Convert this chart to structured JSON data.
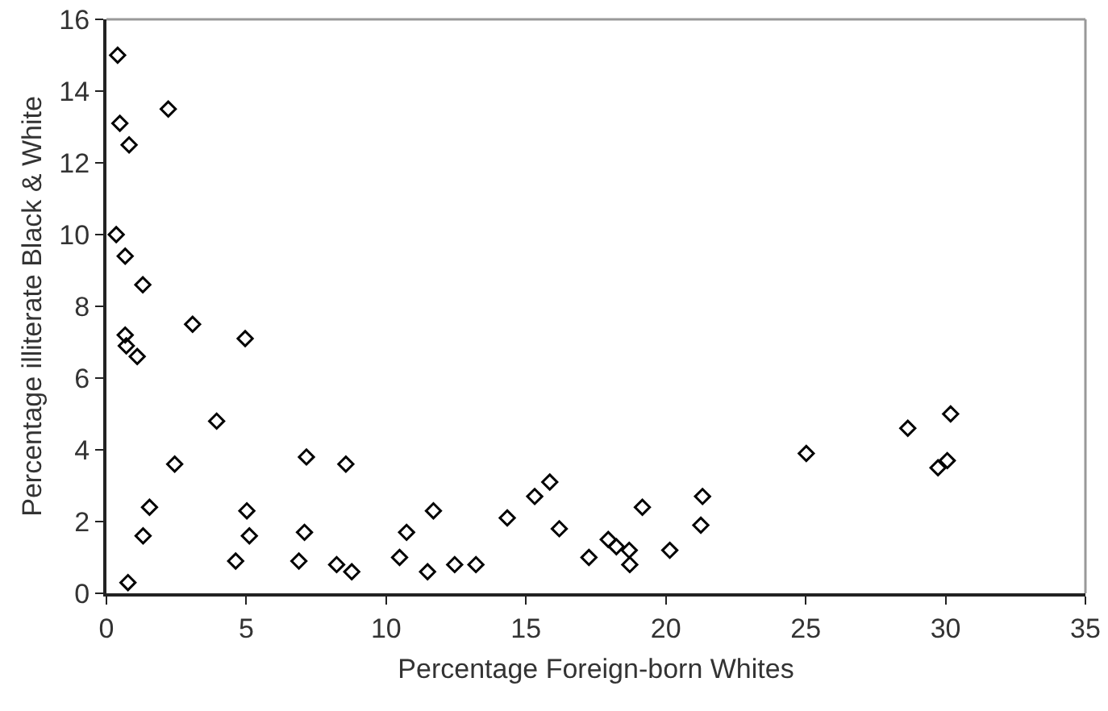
{
  "chart_data": {
    "type": "scatter",
    "xlabel": "Percentage Foreign-born Whites",
    "ylabel": "Percentage illiterate Black & White",
    "x": [
      0.4,
      0.48,
      0.81,
      2.21,
      0.35,
      0.67,
      1.3,
      0.67,
      0.71,
      1.1,
      3.08,
      4.96,
      3.94,
      2.44,
      1.54,
      1.31,
      0.77,
      4.62,
      5.02,
      5.11,
      7.15,
      8.56,
      7.08,
      6.88,
      8.23,
      8.77,
      10.48,
      10.73,
      11.48,
      11.69,
      12.45,
      13.21,
      14.33,
      15.31,
      15.85,
      16.19,
      17.25,
      17.94,
      18.23,
      18.69,
      18.71,
      19.16,
      20.14,
      21.25,
      21.31,
      25.02,
      28.65,
      30.18,
      29.73,
      30.06
    ],
    "values": [
      15.0,
      13.1,
      12.5,
      13.5,
      10.0,
      9.4,
      8.6,
      7.2,
      6.9,
      6.6,
      7.5,
      7.1,
      4.8,
      3.6,
      2.4,
      1.6,
      0.3,
      0.9,
      2.3,
      1.6,
      3.8,
      3.6,
      1.7,
      0.9,
      0.8,
      0.6,
      1.0,
      1.7,
      0.6,
      2.3,
      0.8,
      0.8,
      2.1,
      2.7,
      3.1,
      1.8,
      1.0,
      1.5,
      1.3,
      1.2,
      0.8,
      2.4,
      1.2,
      1.9,
      2.7,
      3.9,
      4.6,
      5.0,
      3.5,
      3.7
    ],
    "color": "#000000",
    "marker": "diamond",
    "xlim": [
      0,
      35
    ],
    "xticks": [
      0,
      5,
      10,
      15,
      20,
      25,
      30,
      35
    ],
    "ylim": [
      0,
      16
    ],
    "yticks": [
      0,
      2,
      4,
      6,
      8,
      10,
      12,
      14,
      16
    ],
    "grid": false,
    "legend": false
  }
}
